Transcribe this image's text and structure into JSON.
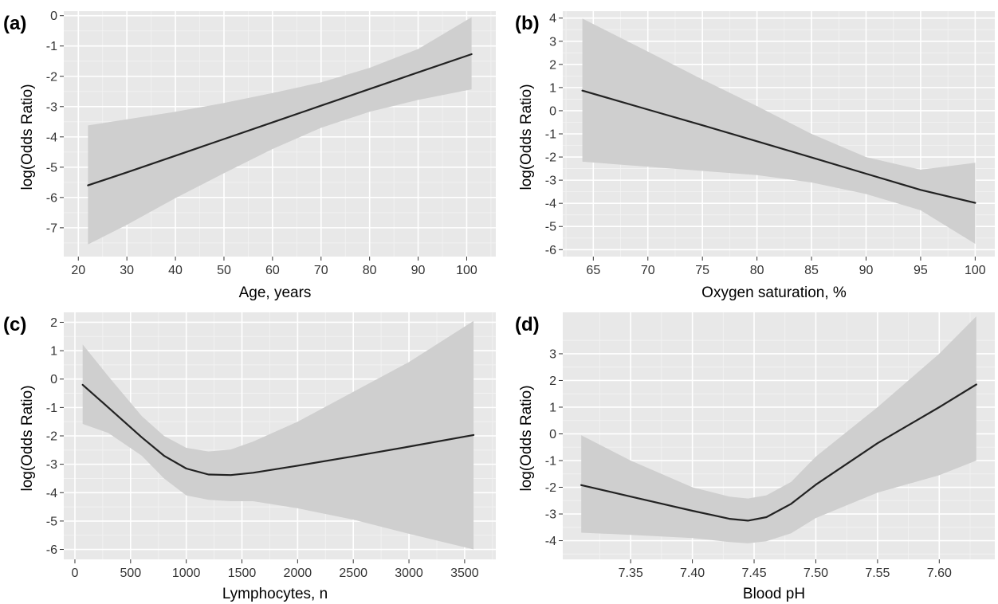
{
  "colors": {
    "panel_background": "#e8e8e8",
    "grid_major": "#ffffff",
    "grid_minor": "#f3f3f3",
    "ribbon": "#cfcfcf",
    "line": "#222222",
    "tick_text": "#333333"
  },
  "chart_data": [
    {
      "type": "line",
      "panel": "(a)",
      "xlabel": "Age, years",
      "ylabel": "log(Odds Ratio)",
      "xlim": [
        17,
        106
      ],
      "ylim": [
        -7.95,
        0.15
      ],
      "xticks": [
        20,
        30,
        40,
        50,
        60,
        70,
        80,
        90,
        100
      ],
      "yticks": [
        0,
        -1,
        -2,
        -3,
        -4,
        -5,
        -6,
        -7
      ],
      "grid": true,
      "series": [
        {
          "x": [
            22,
            30,
            40,
            50,
            60,
            70,
            80,
            90,
            101
          ],
          "y": [
            -5.6,
            -5.17,
            -4.62,
            -4.07,
            -3.52,
            -2.97,
            -2.42,
            -1.87,
            -1.27
          ],
          "lower": [
            -7.55,
            -6.9,
            -6.02,
            -5.2,
            -4.4,
            -3.7,
            -3.17,
            -2.78,
            -2.43
          ],
          "upper": [
            -3.62,
            -3.42,
            -3.17,
            -2.88,
            -2.55,
            -2.2,
            -1.72,
            -1.1,
            -0.05
          ]
        }
      ]
    },
    {
      "type": "line",
      "panel": "(b)",
      "xlabel": "Oxygen saturation, %",
      "ylabel": "log(Odds Ratio)",
      "xlim": [
        62.2,
        101.8
      ],
      "ylim": [
        -6.3,
        4.3
      ],
      "xticks": [
        65,
        70,
        75,
        80,
        85,
        90,
        95,
        100
      ],
      "yticks": [
        4,
        3,
        2,
        1,
        0,
        -1,
        -2,
        -3,
        -4,
        -5,
        -6
      ],
      "grid": true,
      "series": [
        {
          "x": [
            64,
            70,
            75,
            80,
            85,
            90,
            95,
            100
          ],
          "y": [
            0.87,
            0.05,
            -0.63,
            -1.32,
            -2.02,
            -2.72,
            -3.42,
            -3.98
          ],
          "lower": [
            -2.2,
            -2.42,
            -2.6,
            -2.78,
            -3.1,
            -3.6,
            -4.3,
            -5.75
          ],
          "upper": [
            3.98,
            2.55,
            1.35,
            0.2,
            -1.0,
            -2.0,
            -2.55,
            -2.25
          ]
        }
      ]
    },
    {
      "type": "line",
      "panel": "(c)",
      "xlabel": "Lymphocytes, n",
      "ylabel": "log(Odds Ratio)",
      "xlim": [
        -100,
        3780
      ],
      "ylim": [
        -6.35,
        2.35
      ],
      "xticks": [
        0,
        500,
        1000,
        1500,
        2000,
        2500,
        3000,
        3500
      ],
      "yticks": [
        2,
        1,
        0,
        -1,
        -2,
        -3,
        -4,
        -5,
        -6
      ],
      "grid": true,
      "series": [
        {
          "x": [
            70,
            300,
            600,
            800,
            1000,
            1200,
            1400,
            1600,
            2000,
            2500,
            3000,
            3580
          ],
          "y": [
            -0.2,
            -1.0,
            -2.05,
            -2.7,
            -3.15,
            -3.36,
            -3.38,
            -3.3,
            -3.05,
            -2.72,
            -2.38,
            -1.97
          ],
          "lower": [
            -1.58,
            -1.9,
            -2.7,
            -3.5,
            -4.1,
            -4.25,
            -4.3,
            -4.3,
            -4.55,
            -4.95,
            -5.45,
            -6.0
          ],
          "upper": [
            1.22,
            0.1,
            -1.3,
            -2.0,
            -2.42,
            -2.55,
            -2.48,
            -2.2,
            -1.5,
            -0.45,
            0.6,
            2.05
          ]
        }
      ]
    },
    {
      "type": "line",
      "panel": "(d)",
      "xlabel": "Blood pH",
      "ylabel": "log(Odds Ratio)",
      "xlim": [
        7.295,
        7.645
      ],
      "ylim": [
        -4.7,
        4.55
      ],
      "xticks": [
        7.35,
        7.4,
        7.45,
        7.5,
        7.55,
        7.6
      ],
      "xticklabels": [
        "7.35",
        "7.40",
        "7.45",
        "7.50",
        "7.55",
        "7.60"
      ],
      "yticks": [
        3,
        2,
        1,
        0,
        -1,
        -2,
        -3,
        -4
      ],
      "grid": true,
      "series": [
        {
          "x": [
            7.31,
            7.35,
            7.4,
            7.43,
            7.445,
            7.46,
            7.48,
            7.5,
            7.55,
            7.6,
            7.63
          ],
          "y": [
            -1.92,
            -2.35,
            -2.88,
            -3.18,
            -3.25,
            -3.12,
            -2.62,
            -1.9,
            -0.35,
            1.0,
            1.85
          ],
          "lower": [
            -3.7,
            -3.78,
            -3.9,
            -4.05,
            -4.1,
            -4.02,
            -3.72,
            -3.15,
            -2.2,
            -1.55,
            -1.0
          ],
          "upper": [
            -0.05,
            -1.0,
            -2.0,
            -2.35,
            -2.42,
            -2.3,
            -1.8,
            -0.85,
            1.0,
            3.0,
            4.4
          ]
        }
      ]
    }
  ]
}
